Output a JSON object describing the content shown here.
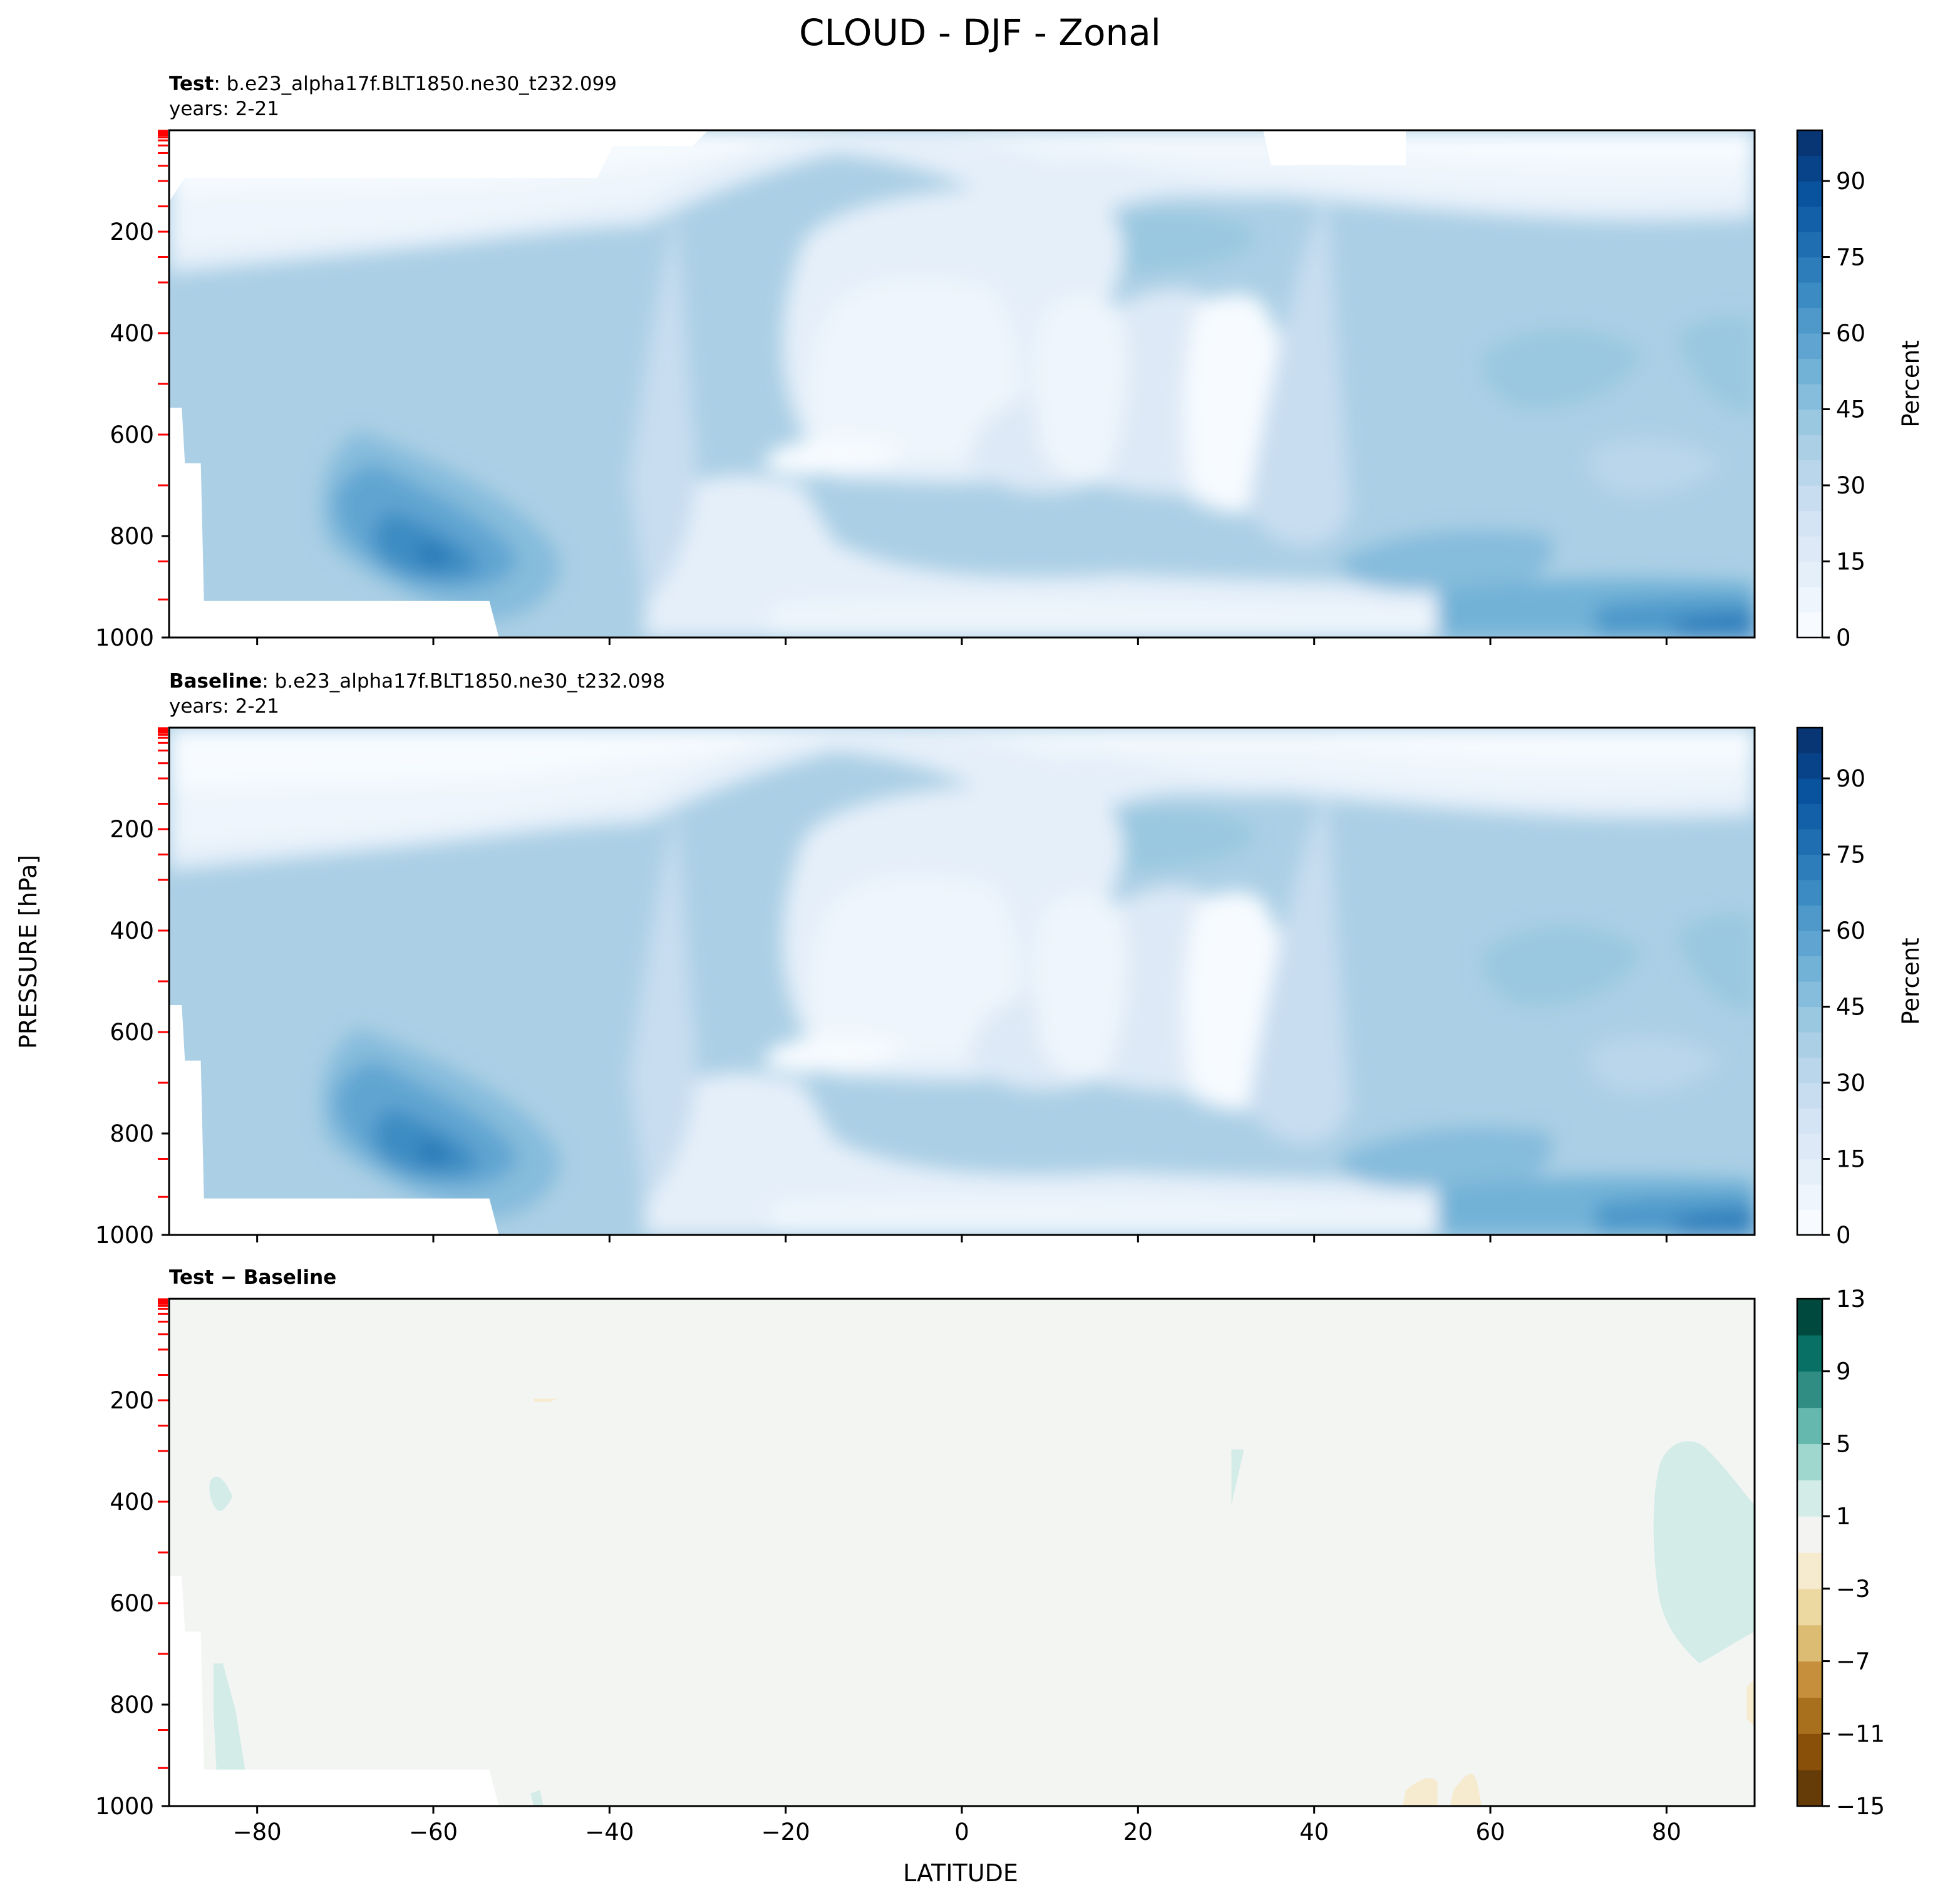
{
  "figure": {
    "title": "CLOUD - DJF - Zonal",
    "shared_ylabel": "PRESSURE [hPa]",
    "shared_xlabel": "LATITUDE"
  },
  "colors": {
    "blues": [
      "#f7fbff",
      "#eef5fc",
      "#e5eff9",
      "#dde9f6",
      "#d4e4f4",
      "#c8ddf0",
      "#bad6eb",
      "#abcfe5",
      "#9ac8e0",
      "#86bcdc",
      "#72b2d7",
      "#60a5d2",
      "#4e99ca",
      "#3c8cc3",
      "#2d7dbb",
      "#1f6eb2",
      "#1460a8",
      "#09529d",
      "#08438a",
      "#083573"
    ],
    "brbg": [
      "#653c07",
      "#885009",
      "#a8701d",
      "#c58f3c",
      "#dcbc72",
      "#ecd8a1",
      "#f6eacf",
      "#f3f4f2",
      "#d3ece8",
      "#9fd7ce",
      "#65b8ae",
      "#2f8d84",
      "#097065",
      "#00493f"
    ],
    "diff_background": "#f3f5f3",
    "missing": "#ffffff",
    "tick_marker": "#ff0000"
  },
  "chart_data": [
    {
      "type": "contourf",
      "label_bold": "Test",
      "label_text": ": b.e23_alpha17f.BLT1850.ne30_t232.099",
      "subtitle": "years: 2-21",
      "xlim": [
        -90,
        90
      ],
      "ylim": [
        1000,
        0
      ],
      "yticks": [
        "200",
        "400",
        "600",
        "800",
        "1000"
      ],
      "xticks": [
        "−80",
        "−60",
        "−40",
        "−20",
        "0",
        "20",
        "40",
        "60",
        "80"
      ],
      "colorbar": {
        "label": "Percent",
        "range": [
          0,
          100
        ],
        "ticks": [
          "0",
          "15",
          "30",
          "45",
          "60",
          "75",
          "90"
        ]
      },
      "contour_levels": [
        0,
        5,
        10,
        15,
        20,
        25,
        30,
        35,
        40,
        45,
        50,
        55,
        60,
        65,
        70,
        75,
        80,
        85,
        90,
        95,
        100
      ]
    },
    {
      "type": "contourf",
      "label_bold": "Baseline",
      "label_text": ": b.e23_alpha17f.BLT1850.ne30_t232.098",
      "subtitle": "years: 2-21",
      "xlim": [
        -90,
        90
      ],
      "ylim": [
        1000,
        0
      ],
      "yticks": [
        "200",
        "400",
        "600",
        "800",
        "1000"
      ],
      "xticks": [
        "−80",
        "−60",
        "−40",
        "−20",
        "0",
        "20",
        "40",
        "60",
        "80"
      ],
      "colorbar": {
        "label": "Percent",
        "range": [
          0,
          100
        ],
        "ticks": [
          "0",
          "15",
          "30",
          "45",
          "60",
          "75",
          "90"
        ]
      },
      "contour_levels": [
        0,
        5,
        10,
        15,
        20,
        25,
        30,
        35,
        40,
        45,
        50,
        55,
        60,
        65,
        70,
        75,
        80,
        85,
        90,
        95,
        100
      ]
    },
    {
      "type": "contourf",
      "label_bold": "Test − Baseline",
      "label_text": "",
      "subtitle": "",
      "xlim": [
        -90,
        90
      ],
      "ylim": [
        1000,
        0
      ],
      "yticks": [
        "200",
        "400",
        "600",
        "800",
        "1000"
      ],
      "xticks": [
        "−80",
        "−60",
        "−40",
        "−20",
        "0",
        "20",
        "40",
        "60",
        "80"
      ],
      "colorbar": {
        "label": "",
        "range": [
          -15,
          13
        ],
        "ticks": [
          "−15",
          "−11",
          "−7",
          "−3",
          "1",
          "5",
          "9",
          "13"
        ]
      },
      "contour_levels": [
        -15,
        -13,
        -11,
        -9,
        -7,
        -5,
        -3,
        -1,
        1,
        3,
        5,
        7,
        9,
        11,
        13
      ]
    }
  ]
}
